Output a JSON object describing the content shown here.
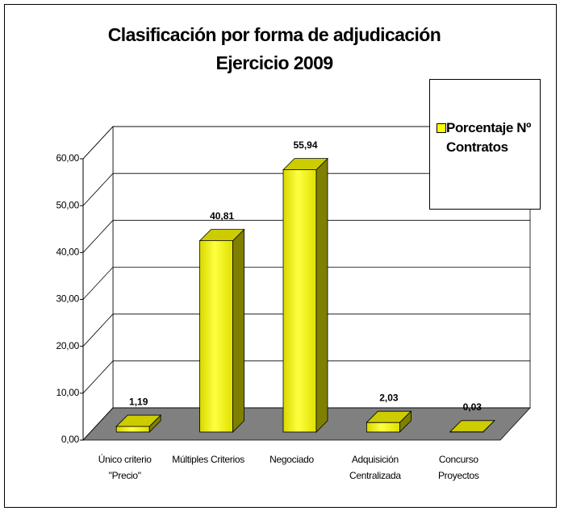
{
  "chart_data": {
    "type": "bar3d",
    "title": "Clasificación por forma de adjudicación",
    "subtitle": "Ejercicio 2009",
    "categories": [
      "Único criterio \"Precio\"",
      "Múltiples Criterios",
      "Negociado",
      "Adquisición Centralizada",
      "Concurso Proyectos"
    ],
    "series": [
      {
        "name": "Porcentaje Nº Contratos",
        "color": "#ffff00",
        "values": [
          1.19,
          40.81,
          55.94,
          2.03,
          0.03
        ],
        "value_labels": [
          "1,19",
          "40,81",
          "55,94",
          "2,03",
          "0,03"
        ]
      }
    ],
    "ylim": [
      0,
      60
    ],
    "yticks": [
      {
        "value": 0,
        "label": "0,00"
      },
      {
        "value": 10,
        "label": "10,00"
      },
      {
        "value": 20,
        "label": "20,00"
      },
      {
        "value": 30,
        "label": "30,00"
      },
      {
        "value": 40,
        "label": "40,00"
      },
      {
        "value": 50,
        "label": "50,00"
      },
      {
        "value": 60,
        "label": "60,00"
      }
    ],
    "grid": true,
    "legend": "right"
  }
}
